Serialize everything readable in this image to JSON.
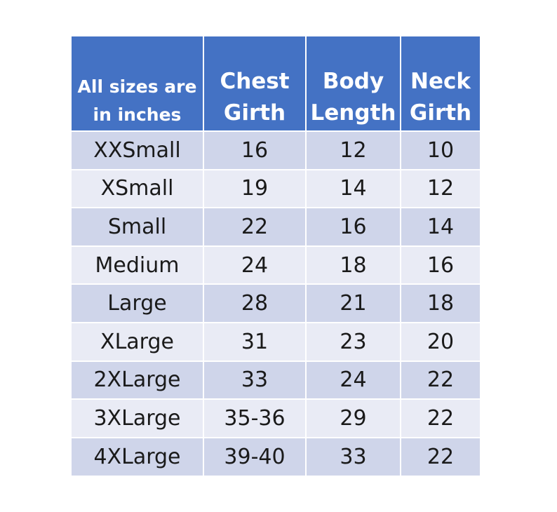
{
  "table": {
    "header": {
      "col1": [
        "All sizes are",
        "in inches"
      ],
      "col2": [
        "Chest",
        "Girth"
      ],
      "col3": [
        "Body",
        "Length"
      ],
      "col4": [
        "Neck",
        "Girth"
      ]
    },
    "rows": [
      [
        "XXSmall",
        "16",
        "12",
        "10"
      ],
      [
        "XSmall",
        "19",
        "14",
        "12"
      ],
      [
        "Small",
        "22",
        "16",
        "14"
      ],
      [
        "Medium",
        "24",
        "18",
        "16"
      ],
      [
        "Large",
        "28",
        "21",
        "18"
      ],
      [
        "XLarge",
        "31",
        "23",
        "20"
      ],
      [
        "2XLarge",
        "33",
        "24",
        "22"
      ],
      [
        "3XLarge",
        "35-36",
        "29",
        "22"
      ],
      [
        "4XLarge",
        "39-40",
        "33",
        "22"
      ]
    ],
    "colors": {
      "header_bg": "#4472c4",
      "row_dark": "#cfd5ea",
      "row_light": "#e9ebf5"
    }
  }
}
